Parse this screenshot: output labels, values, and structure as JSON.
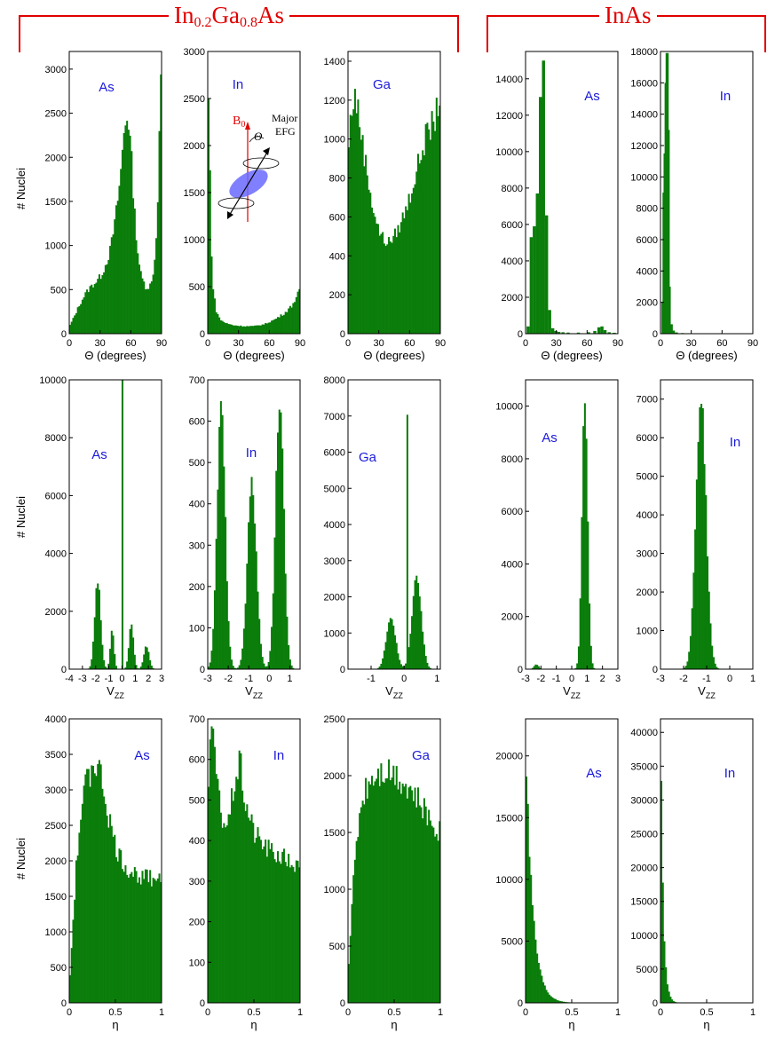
{
  "groups": [
    {
      "base": "In",
      "sub1": "0.2",
      "mid": "Ga",
      "sub2": "0.8",
      "end": "As"
    },
    {
      "label": "InAs"
    }
  ],
  "ylabel": "# Nuclei",
  "inset": {
    "b0": "B",
    "b0_sub": "0",
    "theta": "Θ",
    "major1": "Major",
    "major2": "EFG"
  },
  "colors": {
    "bar": "#0a7d0a",
    "label": "#1a1adc",
    "title": "#e00000"
  },
  "chart_data": [
    {
      "id": "r1c1",
      "type": "bar",
      "label": "As",
      "xlabel": "Θ (degrees)",
      "xlim": [
        0,
        90
      ],
      "ylim": [
        0,
        3200
      ],
      "xticks": [
        0,
        30,
        60,
        90
      ],
      "yticks": [
        0,
        500,
        1000,
        1500,
        2000,
        2500,
        3000
      ],
      "profile": [
        [
          0,
          80
        ],
        [
          5,
          200
        ],
        [
          10,
          330
        ],
        [
          15,
          440
        ],
        [
          20,
          520
        ],
        [
          25,
          580
        ],
        [
          30,
          640
        ],
        [
          35,
          770
        ],
        [
          40,
          950
        ],
        [
          45,
          1300
        ],
        [
          50,
          1800
        ],
        [
          53,
          2250
        ],
        [
          56,
          2500
        ],
        [
          58,
          2400
        ],
        [
          61,
          1900
        ],
        [
          64,
          1300
        ],
        [
          67,
          900
        ],
        [
          70,
          650
        ],
        [
          75,
          520
        ],
        [
          80,
          560
        ],
        [
          84,
          900
        ],
        [
          87,
          1800
        ],
        [
          89,
          2900
        ],
        [
          90,
          3150
        ]
      ]
    },
    {
      "id": "r1c2",
      "type": "bar",
      "label": "In",
      "xlabel": "Θ (degrees)",
      "xlim": [
        0,
        90
      ],
      "ylim": [
        0,
        3000
      ],
      "xticks": [
        0,
        30,
        60,
        90
      ],
      "yticks": [
        0,
        500,
        1000,
        1500,
        2000,
        2500,
        3000
      ],
      "profile": [
        [
          0,
          2800
        ],
        [
          2,
          1900
        ],
        [
          3,
          1100
        ],
        [
          5,
          500
        ],
        [
          8,
          250
        ],
        [
          12,
          150
        ],
        [
          18,
          110
        ],
        [
          25,
          90
        ],
        [
          35,
          80
        ],
        [
          45,
          80
        ],
        [
          55,
          100
        ],
        [
          65,
          150
        ],
        [
          75,
          220
        ],
        [
          82,
          300
        ],
        [
          86,
          380
        ],
        [
          90,
          470
        ]
      ]
    },
    {
      "id": "r1c3",
      "type": "bar",
      "label": "Ga",
      "xlabel": "Θ (degrees)",
      "xlim": [
        0,
        90
      ],
      "ylim": [
        0,
        1450
      ],
      "xticks": [
        0,
        30,
        60,
        90
      ],
      "yticks": [
        0,
        200,
        400,
        600,
        800,
        1000,
        1200,
        1400
      ],
      "profile": [
        [
          0,
          900
        ],
        [
          3,
          1150
        ],
        [
          7,
          1230
        ],
        [
          11,
          1100
        ],
        [
          15,
          950
        ],
        [
          20,
          780
        ],
        [
          25,
          630
        ],
        [
          30,
          530
        ],
        [
          35,
          480
        ],
        [
          40,
          470
        ],
        [
          45,
          500
        ],
        [
          50,
          550
        ],
        [
          55,
          620
        ],
        [
          60,
          700
        ],
        [
          65,
          800
        ],
        [
          70,
          900
        ],
        [
          75,
          1000
        ],
        [
          80,
          1050
        ],
        [
          84,
          1100
        ],
        [
          87,
          1150
        ],
        [
          90,
          1250
        ]
      ]
    },
    {
      "id": "r1c4",
      "type": "bar",
      "label": "As",
      "xlabel": "Θ (degrees)",
      "xlim": [
        0,
        90
      ],
      "ylim": [
        0,
        15500
      ],
      "xticks": [
        0,
        30,
        60,
        90
      ],
      "yticks": [
        0,
        2000,
        4000,
        6000,
        8000,
        10000,
        12000,
        14000
      ],
      "bars": [
        [
          1,
          400
        ],
        [
          4,
          5300
        ],
        [
          7,
          5900
        ],
        [
          10,
          7700
        ],
        [
          13,
          13000
        ],
        [
          16,
          15000
        ],
        [
          19,
          6500
        ],
        [
          22,
          1300
        ],
        [
          25,
          300
        ],
        [
          28,
          150
        ],
        [
          31,
          100
        ],
        [
          35,
          80
        ],
        [
          40,
          60
        ],
        [
          50,
          60
        ],
        [
          60,
          80
        ],
        [
          66,
          150
        ],
        [
          70,
          350
        ],
        [
          73,
          400
        ],
        [
          76,
          200
        ],
        [
          80,
          80
        ],
        [
          85,
          50
        ]
      ]
    },
    {
      "id": "r1c5",
      "type": "bar",
      "label": "In",
      "xlabel": "Θ (degrees)",
      "xlim": [
        0,
        90
      ],
      "ylim": [
        0,
        18000
      ],
      "xticks": [
        0,
        30,
        60,
        90
      ],
      "yticks": [
        0,
        2000,
        4000,
        6000,
        8000,
        10000,
        12000,
        14000,
        16000,
        18000
      ],
      "bars": [
        [
          1,
          2000
        ],
        [
          2,
          9000
        ],
        [
          3,
          11500
        ],
        [
          4,
          16000
        ],
        [
          5,
          17900
        ],
        [
          6,
          13000
        ],
        [
          7,
          3000
        ],
        [
          9,
          600
        ],
        [
          11,
          200
        ],
        [
          14,
          80
        ],
        [
          20,
          40
        ]
      ]
    },
    {
      "id": "r2c1",
      "type": "bar",
      "label": "As",
      "xlabel": "VZZ",
      "xlim": [
        -4,
        3
      ],
      "ylim": [
        0,
        10000
      ],
      "xticks": [
        -4,
        -3,
        -2,
        -1,
        0,
        1,
        2,
        3
      ],
      "yticks": [
        0,
        2000,
        4000,
        6000,
        8000,
        10000
      ],
      "peaks": [
        [
          -1.85,
          3100,
          0.22
        ],
        [
          -0.75,
          1350,
          0.14
        ],
        [
          0.7,
          1600,
          0.17
        ],
        [
          1.85,
          800,
          0.2
        ]
      ],
      "spike": [
        0,
        9800,
        0.06
      ]
    },
    {
      "id": "r2c2",
      "type": "bar",
      "label": "In",
      "xlabel": "VZZ",
      "xlim": [
        -3,
        1.5
      ],
      "ylim": [
        0,
        700
      ],
      "xticks": [
        -3,
        -2,
        -1,
        0,
        1
      ],
      "yticks": [
        0,
        100,
        200,
        300,
        400,
        500,
        600,
        700
      ],
      "peaks": [
        [
          -2.35,
          625,
          0.2
        ],
        [
          -0.85,
          450,
          0.22
        ],
        [
          0.5,
          650,
          0.2
        ]
      ]
    },
    {
      "id": "r2c3",
      "type": "bar",
      "label": "Ga",
      "xlabel": "VZZ",
      "xlim": [
        -1.7,
        1.1
      ],
      "ylim": [
        0,
        8000
      ],
      "xticks": [
        -1,
        0,
        1
      ],
      "yticks": [
        0,
        1000,
        2000,
        3000,
        4000,
        5000,
        6000,
        7000,
        8000
      ],
      "peaks": [
        [
          -0.4,
          1450,
          0.14
        ],
        [
          0.38,
          2500,
          0.14
        ]
      ],
      "spike": [
        0.08,
        7300,
        0.04
      ]
    },
    {
      "id": "r2c4",
      "type": "bar",
      "label": "As",
      "xlabel": "VZZ",
      "xlim": [
        -3,
        3
      ],
      "ylim": [
        0,
        11000
      ],
      "xticks": [
        -3,
        -2,
        -1,
        0,
        1,
        2,
        3
      ],
      "yticks": [
        0,
        2000,
        4000,
        6000,
        8000,
        10000
      ],
      "peaks": [
        [
          0.85,
          10500,
          0.18
        ],
        [
          -2.3,
          180,
          0.15
        ]
      ]
    },
    {
      "id": "r2c5",
      "type": "bar",
      "label": "In",
      "xlabel": "VZZ",
      "xlim": [
        -3,
        1
      ],
      "ylim": [
        0,
        7500
      ],
      "xticks": [
        -3,
        -2,
        -1,
        0,
        1
      ],
      "yticks": [
        0,
        1000,
        2000,
        3000,
        4000,
        5000,
        6000,
        7000
      ],
      "peaks": [
        [
          -1.25,
          7000,
          0.22
        ]
      ]
    },
    {
      "id": "r3c1",
      "type": "bar",
      "label": "As",
      "xlabel": "η",
      "xlim": [
        0,
        1
      ],
      "ylim": [
        0,
        4000
      ],
      "xticks": [
        0,
        0.5,
        1
      ],
      "yticks": [
        0,
        500,
        1000,
        1500,
        2000,
        2500,
        3000,
        3500,
        4000
      ],
      "profile": [
        [
          0,
          200
        ],
        [
          0.03,
          900
        ],
        [
          0.07,
          1800
        ],
        [
          0.12,
          2600
        ],
        [
          0.18,
          3100
        ],
        [
          0.25,
          3350
        ],
        [
          0.3,
          3400
        ],
        [
          0.36,
          3100
        ],
        [
          0.43,
          2600
        ],
        [
          0.5,
          2200
        ],
        [
          0.57,
          2000
        ],
        [
          0.65,
          1850
        ],
        [
          0.75,
          1800
        ],
        [
          0.85,
          1750
        ],
        [
          0.95,
          1780
        ],
        [
          1,
          1780
        ]
      ]
    },
    {
      "id": "r3c2",
      "type": "bar",
      "label": "In",
      "xlabel": "η",
      "xlim": [
        0,
        1
      ],
      "ylim": [
        0,
        700
      ],
      "xticks": [
        0,
        0.5,
        1
      ],
      "yticks": [
        0,
        100,
        200,
        300,
        400,
        500,
        600,
        700
      ],
      "profile": [
        [
          0,
          500
        ],
        [
          0.03,
          680
        ],
        [
          0.08,
          600
        ],
        [
          0.13,
          480
        ],
        [
          0.18,
          440
        ],
        [
          0.23,
          450
        ],
        [
          0.3,
          560
        ],
        [
          0.35,
          590
        ],
        [
          0.4,
          500
        ],
        [
          0.5,
          420
        ],
        [
          0.6,
          390
        ],
        [
          0.7,
          370
        ],
        [
          0.8,
          360
        ],
        [
          0.9,
          345
        ],
        [
          1,
          330
        ]
      ]
    },
    {
      "id": "r3c3",
      "type": "bar",
      "label": "Ga",
      "xlabel": "η",
      "xlim": [
        0,
        1
      ],
      "ylim": [
        0,
        2500
      ],
      "xticks": [
        0,
        0.5,
        1
      ],
      "yticks": [
        0,
        500,
        1000,
        1500,
        2000,
        2500
      ],
      "profile": [
        [
          0,
          250
        ],
        [
          0.03,
          650
        ],
        [
          0.06,
          1100
        ],
        [
          0.1,
          1500
        ],
        [
          0.15,
          1800
        ],
        [
          0.22,
          1950
        ],
        [
          0.3,
          2030
        ],
        [
          0.4,
          2060
        ],
        [
          0.5,
          2030
        ],
        [
          0.6,
          1950
        ],
        [
          0.7,
          1850
        ],
        [
          0.8,
          1720
        ],
        [
          0.9,
          1600
        ],
        [
          1,
          1500
        ]
      ]
    },
    {
      "id": "r3c4",
      "type": "bar",
      "label": "As",
      "xlabel": "η",
      "xlim": [
        0,
        1
      ],
      "ylim": [
        0,
        23000
      ],
      "xticks": [
        0,
        0.5,
        1
      ],
      "yticks": [
        0,
        5000,
        10000,
        15000,
        20000
      ],
      "decay": [
        22000,
        0.075
      ]
    },
    {
      "id": "r3c5",
      "type": "bar",
      "label": "In",
      "xlabel": "η",
      "xlim": [
        0,
        1
      ],
      "ylim": [
        0,
        42000
      ],
      "xticks": [
        0,
        0.5,
        1
      ],
      "yticks": [
        0,
        5000,
        10000,
        15000,
        20000,
        25000,
        30000,
        35000,
        40000
      ],
      "decay": [
        42000,
        0.028
      ]
    }
  ]
}
